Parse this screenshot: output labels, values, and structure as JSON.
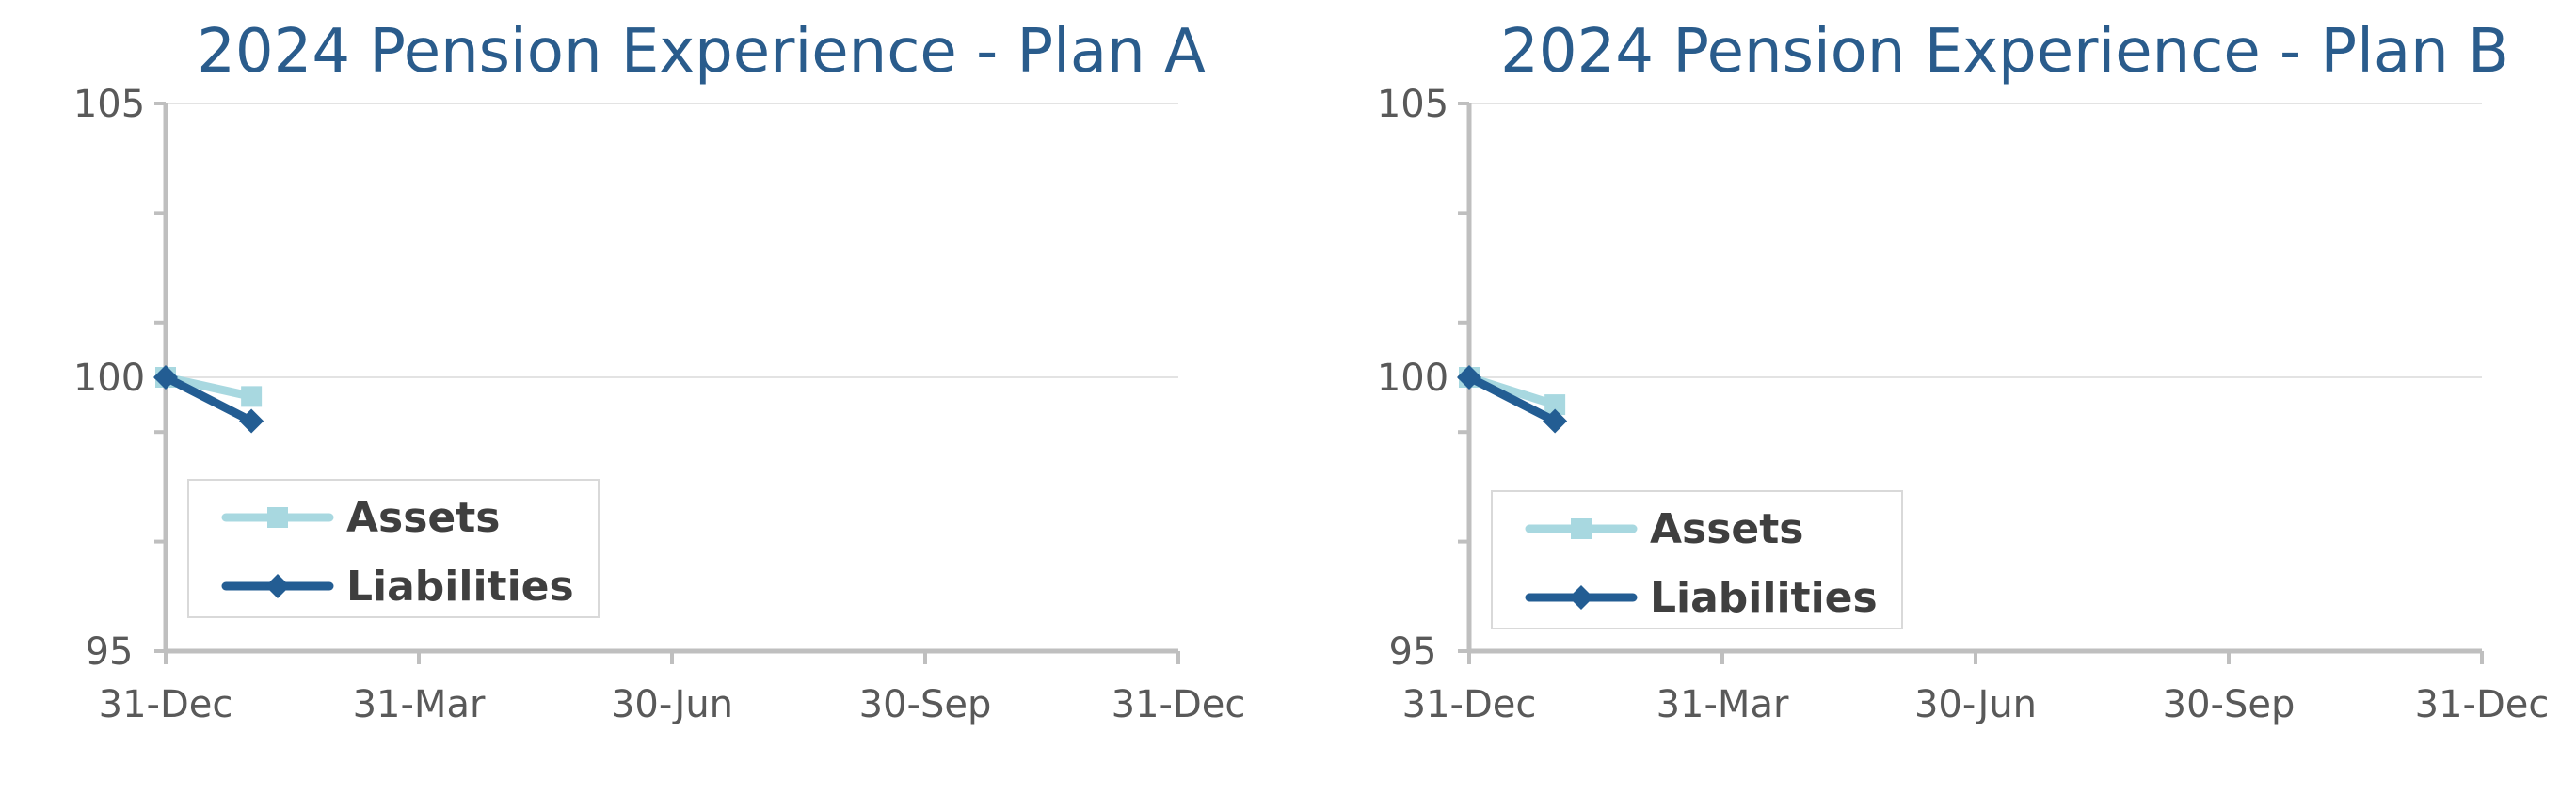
{
  "chart_data": [
    {
      "type": "line",
      "title": "2024 Pension Experience - Plan A",
      "xlabel": "",
      "ylabel": "",
      "ylim": [
        95,
        105
      ],
      "yticks": [
        "95",
        "100",
        "105"
      ],
      "x_ticks": [
        "31-Dec",
        "31-Mar",
        "30-Jun",
        "30-Sep",
        "31-Dec"
      ],
      "grid": true,
      "legend_position": "bottom-left",
      "series": [
        {
          "name": "Assets",
          "color": "#a8d8e0",
          "marker": "square",
          "x": [
            0,
            31
          ],
          "values": [
            100,
            99.65
          ]
        },
        {
          "name": "Liabilities",
          "color": "#235d93",
          "marker": "diamond",
          "x": [
            0,
            31
          ],
          "values": [
            100,
            99.2
          ]
        }
      ]
    },
    {
      "type": "line",
      "title": "2024 Pension Experience - Plan B",
      "xlabel": "",
      "ylabel": "",
      "ylim": [
        95,
        105
      ],
      "yticks": [
        "95",
        "100",
        "105"
      ],
      "x_ticks": [
        "31-Dec",
        "31-Mar",
        "30-Jun",
        "30-Sep",
        "31-Dec"
      ],
      "grid": true,
      "legend_position": "bottom-left",
      "series": [
        {
          "name": "Assets",
          "color": "#a8d8e0",
          "marker": "square",
          "x": [
            0,
            31
          ],
          "values": [
            100,
            99.5
          ]
        },
        {
          "name": "Liabilities",
          "color": "#235d93",
          "marker": "diamond",
          "x": [
            0,
            31
          ],
          "values": [
            100,
            99.2
          ]
        }
      ]
    }
  ]
}
